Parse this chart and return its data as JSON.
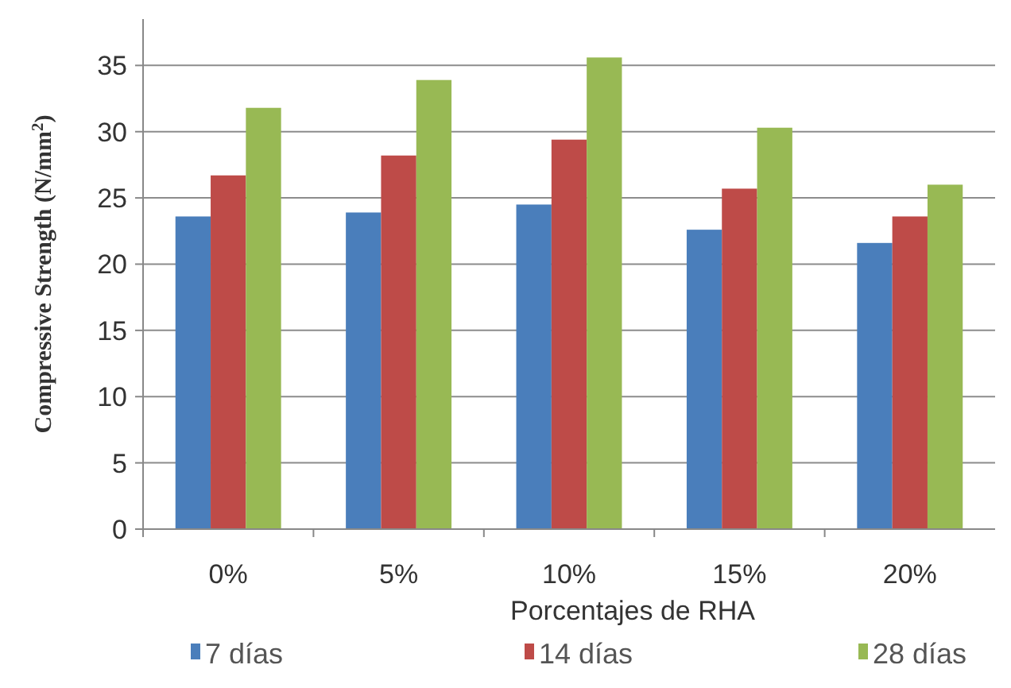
{
  "chart_data": {
    "type": "bar",
    "xlabel": "Porcentajes de RHA",
    "ylabel": "Compressive Strength (N/mm$^{2}$)",
    "categories": [
      "0%",
      "5%",
      "10%",
      "15%",
      "20%"
    ],
    "series": [
      {
        "name": "7 días",
        "color": "#4a7ebb",
        "values": [
          23.6,
          23.9,
          24.5,
          22.6,
          21.6
        ]
      },
      {
        "name": "14 días",
        "color": "#be4b48",
        "values": [
          26.7,
          28.2,
          29.4,
          25.7,
          23.6
        ]
      },
      {
        "name": "28 días",
        "color": "#98b954",
        "values": [
          31.8,
          33.9,
          35.6,
          30.3,
          26.0
        ]
      }
    ],
    "ylim": [
      0,
      38.5
    ],
    "yticks": [
      0,
      5,
      10,
      15,
      20,
      25,
      30,
      35
    ],
    "grid": "y",
    "legend": "bottom"
  }
}
